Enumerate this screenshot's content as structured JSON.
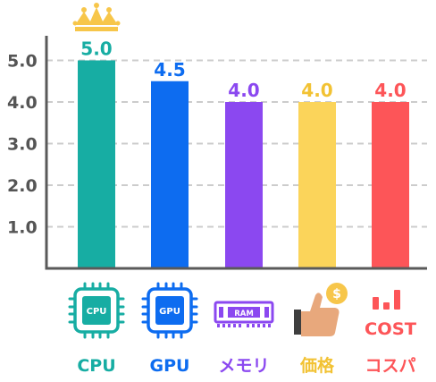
{
  "chart_data": {
    "type": "bar",
    "categories": [
      "CPU",
      "GPU",
      "メモリ",
      "価格",
      "コスパ"
    ],
    "values": [
      5.0,
      4.5,
      4.0,
      4.0,
      4.0
    ],
    "value_labels": [
      "5.0",
      "4.5",
      "4.0",
      "4.0",
      "4.0"
    ],
    "colors": [
      "#17ada3",
      "#0d6cf0",
      "#8b48f0",
      "#fbd45a",
      "#fd5558"
    ],
    "label_colors": [
      "#17ada3",
      "#0d6cf0",
      "#8b48f0",
      "#f2c233",
      "#fd5558"
    ],
    "y_ticks": [
      "1.0",
      "2.0",
      "3.0",
      "4.0",
      "5.0"
    ],
    "ylim": [
      0,
      5.4
    ],
    "grid": true,
    "title": "",
    "xlabel": "",
    "ylabel": ""
  },
  "icons": {
    "cpu_chip_text": "CPU",
    "gpu_chip_text": "GPU",
    "ram_chip_text": "RAM",
    "price_coin_symbol": "$",
    "cost_text": "COST"
  },
  "colors": {
    "axis": "#5a5a5a",
    "grid": "#cccccc",
    "tick_text": "#555555",
    "crown": "#f7c64a"
  },
  "top_badge_icon": "crown-icon"
}
